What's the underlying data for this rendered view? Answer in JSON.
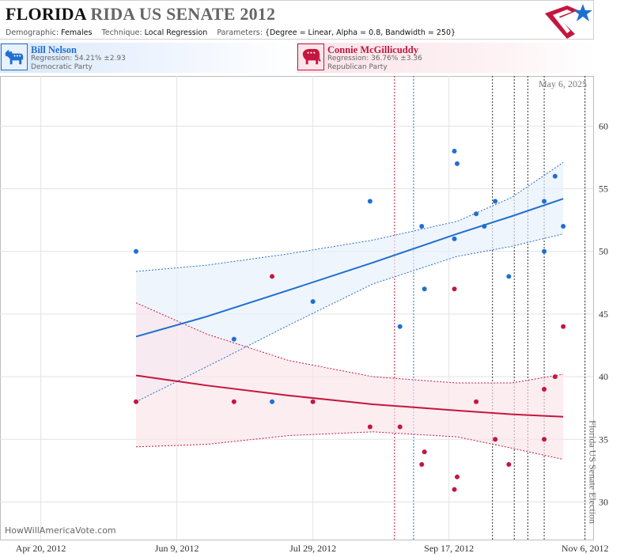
{
  "header": {
    "title_state": "FLORIDA",
    "title_rest": "RIDA US SENATE 2012",
    "demographic_label": "Demographic:",
    "demographic_value": "Females",
    "technique_label": "Technique:",
    "technique_value": "Local Regression",
    "parameters_label": "Parameters:",
    "parameters_value": "{Degree = Linear, Alpha = 0.8, Bandwidth = 250}"
  },
  "candidates": {
    "dem": {
      "name": "Bill Nelson",
      "regression": "Regression: 54.21% ±2.93",
      "party": "Democratic Party",
      "color": "#1f6fd1",
      "icon": "donkey-icon"
    },
    "rep": {
      "name": "Connie McGillicuddy",
      "regression": "Regression: 36.76% ±3.36",
      "party": "Republican Party",
      "color": "#c4163e",
      "icon": "elephant-icon"
    }
  },
  "chart_data": {
    "type": "scatter",
    "date_label": "May 6, 2025",
    "watermark": "HowWillAmericaVote.com",
    "election_label": "Florida US Senate Election",
    "x_ticks": [
      "Apr 20, 2012",
      "Jun 9, 2012",
      "Jul 29, 2012",
      "Sep 17, 2012",
      "Nov 6, 2012"
    ],
    "y_ticks": [
      30,
      35,
      40,
      45,
      50,
      55,
      60
    ],
    "xlim": [
      "2012-04-05",
      "2012-11-09"
    ],
    "ylim": [
      27,
      64
    ],
    "grid": true,
    "series": [
      {
        "name": "Bill Nelson",
        "color": "#1f6fd1",
        "points": [
          [
            "2012-05-25",
            50
          ],
          [
            "2012-06-30",
            43
          ],
          [
            "2012-07-14",
            38
          ],
          [
            "2012-07-29",
            46
          ],
          [
            "2012-08-19",
            54
          ],
          [
            "2012-08-30",
            44
          ],
          [
            "2012-09-07",
            52
          ],
          [
            "2012-09-08",
            47
          ],
          [
            "2012-09-19",
            58
          ],
          [
            "2012-09-20",
            57
          ],
          [
            "2012-09-19",
            51
          ],
          [
            "2012-09-27",
            53
          ],
          [
            "2012-09-30",
            52
          ],
          [
            "2012-10-04",
            54
          ],
          [
            "2012-10-09",
            48
          ],
          [
            "2012-10-22",
            54
          ],
          [
            "2012-10-22",
            50
          ],
          [
            "2012-10-26",
            56
          ],
          [
            "2012-10-29",
            52
          ]
        ],
        "fit": [
          [
            "2012-05-25",
            43.2
          ],
          [
            "2012-06-20",
            44.8
          ],
          [
            "2012-07-20",
            46.9
          ],
          [
            "2012-08-20",
            49.1
          ],
          [
            "2012-09-20",
            51.4
          ],
          [
            "2012-10-10",
            52.8
          ],
          [
            "2012-10-29",
            54.2
          ]
        ],
        "band_upper": [
          [
            "2012-05-25",
            48.4
          ],
          [
            "2012-06-20",
            48.9
          ],
          [
            "2012-07-20",
            49.8
          ],
          [
            "2012-08-20",
            50.9
          ],
          [
            "2012-09-20",
            52.4
          ],
          [
            "2012-10-10",
            54.3
          ],
          [
            "2012-10-29",
            57.1
          ]
        ],
        "band_lower": [
          [
            "2012-05-25",
            38.0
          ],
          [
            "2012-06-20",
            40.8
          ],
          [
            "2012-07-20",
            44.1
          ],
          [
            "2012-08-20",
            47.4
          ],
          [
            "2012-09-20",
            49.6
          ],
          [
            "2012-10-10",
            50.4
          ],
          [
            "2012-10-29",
            51.4
          ]
        ]
      },
      {
        "name": "Connie McGillicuddy",
        "color": "#c4163e",
        "points": [
          [
            "2012-05-25",
            38
          ],
          [
            "2012-06-30",
            38
          ],
          [
            "2012-07-14",
            48
          ],
          [
            "2012-07-29",
            38
          ],
          [
            "2012-08-19",
            36
          ],
          [
            "2012-08-30",
            36
          ],
          [
            "2012-09-07",
            33
          ],
          [
            "2012-09-08",
            34
          ],
          [
            "2012-09-19",
            47
          ],
          [
            "2012-09-19",
            31
          ],
          [
            "2012-09-20",
            32
          ],
          [
            "2012-09-27",
            38
          ],
          [
            "2012-10-04",
            35
          ],
          [
            "2012-10-09",
            33
          ],
          [
            "2012-10-22",
            39
          ],
          [
            "2012-10-22",
            35
          ],
          [
            "2012-10-26",
            40
          ],
          [
            "2012-10-29",
            44
          ]
        ],
        "fit": [
          [
            "2012-05-25",
            40.1
          ],
          [
            "2012-06-20",
            39.3
          ],
          [
            "2012-07-20",
            38.5
          ],
          [
            "2012-08-20",
            37.8
          ],
          [
            "2012-09-20",
            37.3
          ],
          [
            "2012-10-10",
            37.0
          ],
          [
            "2012-10-29",
            36.8
          ]
        ],
        "band_upper": [
          [
            "2012-05-25",
            45.9
          ],
          [
            "2012-06-20",
            43.4
          ],
          [
            "2012-07-20",
            41.3
          ],
          [
            "2012-08-20",
            40.0
          ],
          [
            "2012-09-20",
            39.5
          ],
          [
            "2012-10-10",
            39.5
          ],
          [
            "2012-10-29",
            40.2
          ]
        ],
        "band_lower": [
          [
            "2012-05-25",
            34.4
          ],
          [
            "2012-06-20",
            34.6
          ],
          [
            "2012-07-20",
            35.3
          ],
          [
            "2012-08-20",
            35.6
          ],
          [
            "2012-09-20",
            35.2
          ],
          [
            "2012-10-10",
            34.3
          ],
          [
            "2012-10-29",
            33.4
          ]
        ]
      }
    ],
    "event_lines": [
      {
        "date": "2012-08-28",
        "color": "#c4163e"
      },
      {
        "date": "2012-09-04",
        "color": "#1f6fd1"
      },
      {
        "date": "2012-10-03",
        "color": "#333333"
      },
      {
        "date": "2012-10-11",
        "color": "#333333"
      },
      {
        "date": "2012-10-16",
        "color": "#333333"
      },
      {
        "date": "2012-10-22",
        "color": "#333333"
      },
      {
        "date": "2012-11-06",
        "color": "#333333"
      }
    ]
  }
}
